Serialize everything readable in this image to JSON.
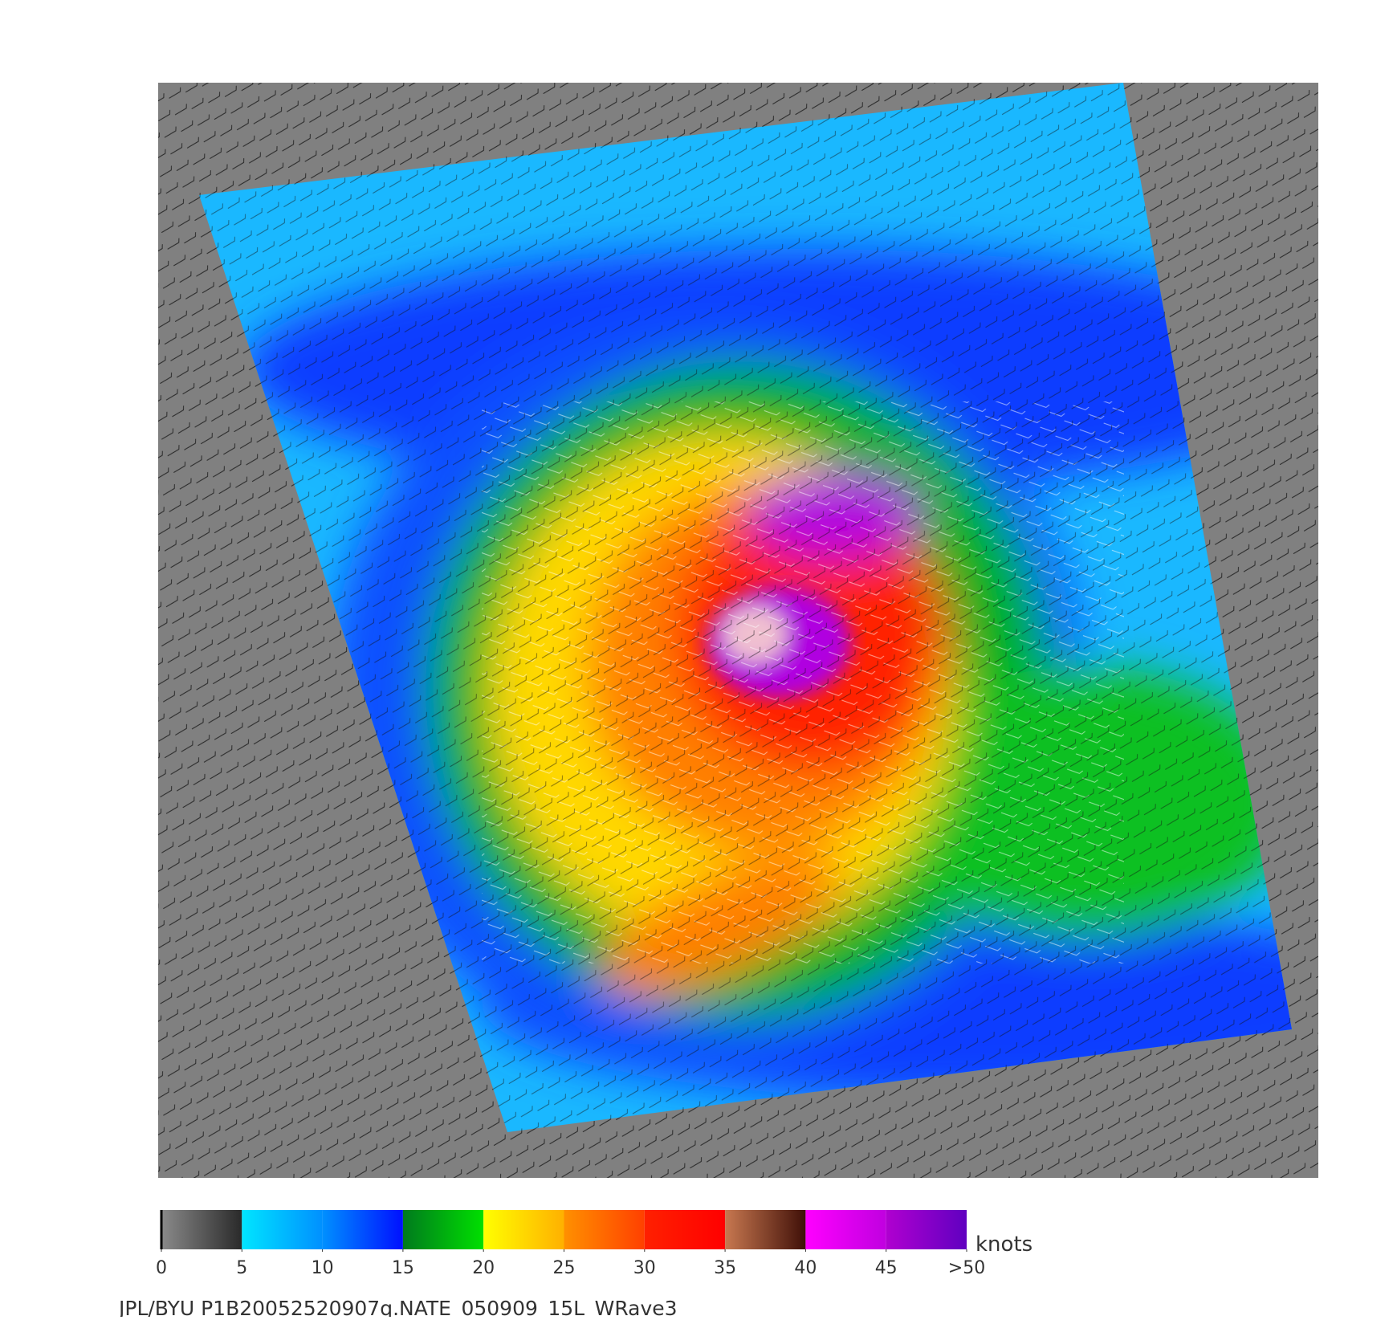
{
  "colorbar": {
    "unit": "knots",
    "clim": [
      0,
      50
    ],
    "ticks": [
      0,
      5,
      10,
      15,
      20,
      25,
      30,
      35,
      40,
      45,
      {
        "value": 50,
        "label": ">50"
      }
    ],
    "colors": [
      [
        "#8a8a8a",
        "#2a2a2a"
      ],
      [
        "#00e5ff",
        "#0090ff"
      ],
      [
        "#0090ff",
        "#0010ff"
      ],
      [
        "#007a1e",
        "#00e000"
      ],
      [
        "#ffff00",
        "#ffb000"
      ],
      [
        "#ff9000",
        "#ff4000"
      ],
      [
        "#ff2000",
        "#ff0000"
      ],
      [
        "#c87850",
        "#401008"
      ],
      [
        "#ff00ff",
        "#c000e0"
      ],
      [
        "#b000d0",
        "#6000c0"
      ]
    ]
  },
  "caption": "JPL/BYU  P1B20052520907q.NATE_050909_15L_WRave3"
}
